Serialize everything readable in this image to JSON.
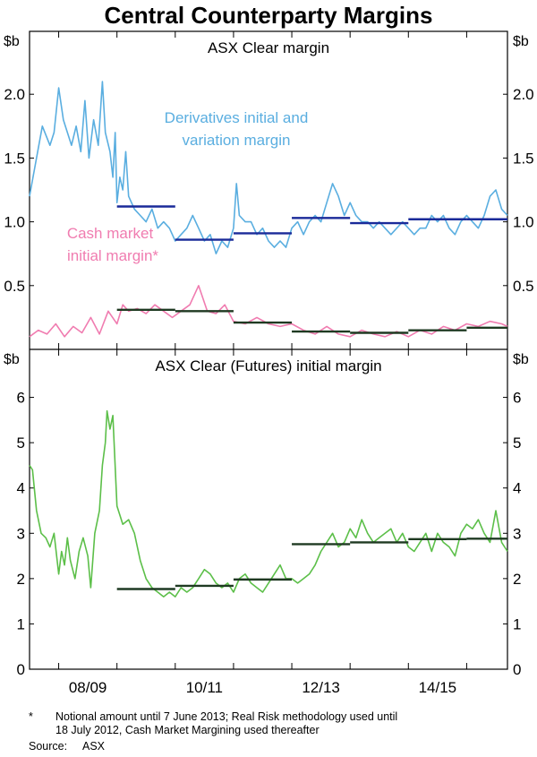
{
  "title": "Central Counterparty Margins",
  "footnote_marker": "*",
  "footnote": "Notional amount until 7 June 2013; Real Risk methodology used until 18 July 2012, Cash Market Margining used thereafter",
  "footnote_lines": [
    "Notional amount until 7 June 2013; Real Risk methodology used until",
    "18 July 2012, Cash Market Margining used thereafter"
  ],
  "source_label": "Source:",
  "source": "ASX",
  "colors": {
    "derivatives": "#5aaee0",
    "cash": "#f07cb0",
    "futures": "#5cbf49",
    "avg_top": "#1a2a99",
    "avg_bottom": "#1f3a22"
  },
  "chart_data": [
    {
      "type": "line",
      "title": "ASX Clear margin",
      "ylabel_left": "$b",
      "ylabel_right": "$b",
      "ylim": [
        0,
        2.5
      ],
      "yticks": [
        0.5,
        1.0,
        1.5,
        2.0
      ],
      "ytick_labels": [
        "0.5",
        "1.0",
        "1.5",
        "2.0"
      ],
      "x_range": [
        2007.5,
        2015.7
      ],
      "x_ticks": [
        2008.5,
        2010.5,
        2012.5,
        2014.5
      ],
      "x_tick_labels": [
        "08/09",
        "10/11",
        "12/13",
        "14/15"
      ],
      "series": [
        {
          "name": "Derivatives initial and variation margin",
          "label_lines": [
            "Derivatives initial and",
            "variation margin"
          ],
          "x": [
            2007.5,
            2007.62,
            2007.72,
            2007.85,
            2007.92,
            2008.0,
            2008.08,
            2008.15,
            2008.22,
            2008.3,
            2008.38,
            2008.45,
            2008.52,
            2008.6,
            2008.68,
            2008.75,
            2008.8,
            2008.88,
            2008.93,
            2008.97,
            2009.0,
            2009.05,
            2009.1,
            2009.15,
            2009.2,
            2009.3,
            2009.4,
            2009.5,
            2009.6,
            2009.7,
            2009.8,
            2009.9,
            2010.0,
            2010.1,
            2010.2,
            2010.3,
            2010.4,
            2010.5,
            2010.6,
            2010.7,
            2010.8,
            2010.9,
            2011.0,
            2011.05,
            2011.1,
            2011.2,
            2011.3,
            2011.4,
            2011.5,
            2011.6,
            2011.7,
            2011.8,
            2011.9,
            2012.0,
            2012.1,
            2012.2,
            2012.3,
            2012.4,
            2012.5,
            2012.6,
            2012.7,
            2012.8,
            2012.9,
            2013.0,
            2013.1,
            2013.2,
            2013.3,
            2013.4,
            2013.5,
            2013.6,
            2013.7,
            2013.8,
            2013.9,
            2014.0,
            2014.1,
            2014.2,
            2014.3,
            2014.4,
            2014.5,
            2014.6,
            2014.7,
            2014.8,
            2014.9,
            2015.0,
            2015.1,
            2015.2,
            2015.3,
            2015.4,
            2015.5,
            2015.6,
            2015.7
          ],
          "values": [
            1.2,
            1.5,
            1.75,
            1.6,
            1.7,
            2.05,
            1.8,
            1.7,
            1.6,
            1.75,
            1.55,
            1.95,
            1.5,
            1.8,
            1.6,
            2.1,
            1.7,
            1.55,
            1.35,
            1.7,
            1.15,
            1.35,
            1.25,
            1.55,
            1.2,
            1.1,
            1.05,
            1.0,
            1.1,
            0.95,
            1.0,
            0.95,
            0.85,
            0.9,
            0.95,
            1.05,
            0.95,
            0.85,
            0.9,
            0.75,
            0.85,
            0.8,
            0.95,
            1.3,
            1.05,
            1.0,
            1.0,
            0.9,
            0.95,
            0.85,
            0.8,
            0.85,
            0.8,
            0.95,
            1.0,
            0.9,
            1.0,
            1.05,
            1.0,
            1.15,
            1.3,
            1.2,
            1.05,
            1.15,
            1.05,
            1.0,
            1.0,
            0.95,
            1.0,
            0.95,
            0.9,
            0.95,
            1.0,
            0.95,
            0.9,
            0.95,
            0.95,
            1.05,
            1.0,
            1.05,
            0.95,
            0.9,
            1.0,
            1.05,
            1.0,
            0.95,
            1.05,
            1.2,
            1.25,
            1.1,
            1.05
          ]
        },
        {
          "name": "Cash market initial margin*",
          "label_lines": [
            "Cash market",
            "initial margin*"
          ],
          "x": [
            2007.5,
            2007.65,
            2007.8,
            2007.95,
            2008.1,
            2008.25,
            2008.4,
            2008.55,
            2008.7,
            2008.85,
            2009.0,
            2009.1,
            2009.2,
            2009.35,
            2009.5,
            2009.65,
            2009.8,
            2009.95,
            2010.1,
            2010.25,
            2010.4,
            2010.55,
            2010.7,
            2010.85,
            2011.0,
            2011.2,
            2011.4,
            2011.6,
            2011.8,
            2012.0,
            2012.2,
            2012.4,
            2012.6,
            2012.8,
            2013.0,
            2013.2,
            2013.4,
            2013.6,
            2013.8,
            2014.0,
            2014.2,
            2014.4,
            2014.6,
            2014.8,
            2015.0,
            2015.2,
            2015.4,
            2015.6,
            2015.7
          ],
          "values": [
            0.1,
            0.15,
            0.12,
            0.2,
            0.1,
            0.18,
            0.13,
            0.25,
            0.12,
            0.3,
            0.2,
            0.35,
            0.3,
            0.32,
            0.28,
            0.35,
            0.3,
            0.25,
            0.3,
            0.35,
            0.5,
            0.3,
            0.28,
            0.35,
            0.22,
            0.2,
            0.25,
            0.2,
            0.18,
            0.2,
            0.15,
            0.12,
            0.18,
            0.12,
            0.1,
            0.15,
            0.12,
            0.1,
            0.14,
            0.1,
            0.15,
            0.12,
            0.18,
            0.15,
            0.2,
            0.18,
            0.22,
            0.2,
            0.18
          ]
        }
      ],
      "averages": [
        {
          "series": "Derivatives initial and variation margin",
          "from": 2009.0,
          "to": 2010.0,
          "value": 1.12
        },
        {
          "series": "Derivatives initial and variation margin",
          "from": 2010.0,
          "to": 2011.0,
          "value": 0.86
        },
        {
          "series": "Derivatives initial and variation margin",
          "from": 2011.0,
          "to": 2012.0,
          "value": 0.91
        },
        {
          "series": "Derivatives initial and variation margin",
          "from": 2012.0,
          "to": 2013.0,
          "value": 1.03
        },
        {
          "series": "Derivatives initial and variation margin",
          "from": 2013.0,
          "to": 2014.0,
          "value": 0.99
        },
        {
          "series": "Derivatives initial and variation margin",
          "from": 2014.0,
          "to": 2015.0,
          "value": 1.02
        },
        {
          "series": "Derivatives initial and variation margin",
          "from": 2015.0,
          "to": 2015.7,
          "value": 1.02
        },
        {
          "series": "Cash market initial margin*",
          "from": 2009.0,
          "to": 2010.0,
          "value": 0.31
        },
        {
          "series": "Cash market initial margin*",
          "from": 2010.0,
          "to": 2011.0,
          "value": 0.3
        },
        {
          "series": "Cash market initial margin*",
          "from": 2011.0,
          "to": 2012.0,
          "value": 0.21
        },
        {
          "series": "Cash market initial margin*",
          "from": 2012.0,
          "to": 2013.0,
          "value": 0.14
        },
        {
          "series": "Cash market initial margin*",
          "from": 2013.0,
          "to": 2014.0,
          "value": 0.13
        },
        {
          "series": "Cash market initial margin*",
          "from": 2014.0,
          "to": 2015.0,
          "value": 0.15
        },
        {
          "series": "Cash market initial margin*",
          "from": 2015.0,
          "to": 2015.7,
          "value": 0.17
        }
      ]
    },
    {
      "type": "line",
      "title": "ASX Clear (Futures) initial margin",
      "ylabel_left": "$b",
      "ylabel_right": "$b",
      "ylim": [
        0,
        7
      ],
      "yticks": [
        0,
        1,
        2,
        3,
        4,
        5,
        6
      ],
      "ytick_labels": [
        "0",
        "1",
        "2",
        "3",
        "4",
        "5",
        "6"
      ],
      "x_range": [
        2007.5,
        2015.7
      ],
      "x_ticks": [
        2008.5,
        2010.5,
        2012.5,
        2014.5
      ],
      "x_tick_labels": [
        "08/09",
        "10/11",
        "12/13",
        "14/15"
      ],
      "series": [
        {
          "name": "ASX Clear (Futures) initial margin",
          "x": [
            2007.5,
            2007.55,
            2007.62,
            2007.7,
            2007.78,
            2007.85,
            2007.92,
            2008.0,
            2008.05,
            2008.1,
            2008.15,
            2008.2,
            2008.28,
            2008.35,
            2008.42,
            2008.5,
            2008.55,
            2008.62,
            2008.7,
            2008.75,
            2008.8,
            2008.83,
            2008.88,
            2008.93,
            2009.0,
            2009.1,
            2009.2,
            2009.3,
            2009.4,
            2009.5,
            2009.6,
            2009.7,
            2009.8,
            2009.9,
            2010.0,
            2010.1,
            2010.2,
            2010.3,
            2010.4,
            2010.5,
            2010.6,
            2010.7,
            2010.8,
            2010.9,
            2011.0,
            2011.1,
            2011.2,
            2011.3,
            2011.4,
            2011.5,
            2011.6,
            2011.7,
            2011.8,
            2011.9,
            2012.0,
            2012.1,
            2012.2,
            2012.3,
            2012.4,
            2012.5,
            2012.6,
            2012.7,
            2012.8,
            2012.9,
            2013.0,
            2013.1,
            2013.2,
            2013.3,
            2013.4,
            2013.5,
            2013.6,
            2013.7,
            2013.8,
            2013.9,
            2014.0,
            2014.1,
            2014.2,
            2014.3,
            2014.4,
            2014.5,
            2014.6,
            2014.7,
            2014.8,
            2014.9,
            2015.0,
            2015.1,
            2015.2,
            2015.3,
            2015.4,
            2015.5,
            2015.6,
            2015.7
          ],
          "values": [
            4.5,
            4.4,
            3.5,
            3.0,
            2.9,
            2.7,
            3.0,
            2.1,
            2.6,
            2.3,
            2.9,
            2.4,
            2.0,
            2.6,
            2.9,
            2.5,
            1.8,
            3.0,
            3.5,
            4.5,
            5.0,
            5.7,
            5.3,
            5.6,
            3.6,
            3.2,
            3.3,
            3.0,
            2.4,
            2.0,
            1.8,
            1.7,
            1.6,
            1.7,
            1.6,
            1.8,
            1.7,
            1.8,
            2.0,
            2.2,
            2.1,
            1.9,
            1.8,
            1.9,
            1.7,
            2.0,
            2.1,
            1.9,
            1.8,
            1.7,
            1.9,
            2.1,
            2.3,
            2.0,
            2.0,
            1.9,
            2.0,
            2.1,
            2.3,
            2.6,
            2.8,
            3.0,
            2.7,
            2.8,
            3.1,
            2.9,
            3.3,
            3.0,
            2.8,
            2.9,
            3.0,
            3.1,
            2.8,
            3.0,
            2.7,
            2.6,
            2.8,
            3.0,
            2.6,
            3.0,
            2.8,
            2.7,
            2.5,
            3.0,
            3.2,
            3.1,
            3.3,
            3.0,
            2.8,
            3.5,
            2.8,
            2.6
          ]
        }
      ],
      "averages": [
        {
          "from": 2009.0,
          "to": 2010.0,
          "value": 1.77
        },
        {
          "from": 2010.0,
          "to": 2011.0,
          "value": 1.84
        },
        {
          "from": 2011.0,
          "to": 2012.0,
          "value": 1.98
        },
        {
          "from": 2012.0,
          "to": 2013.0,
          "value": 2.76
        },
        {
          "from": 2013.0,
          "to": 2014.0,
          "value": 2.8
        },
        {
          "from": 2014.0,
          "to": 2015.0,
          "value": 2.87
        },
        {
          "from": 2015.0,
          "to": 2015.7,
          "value": 2.88
        }
      ]
    }
  ]
}
